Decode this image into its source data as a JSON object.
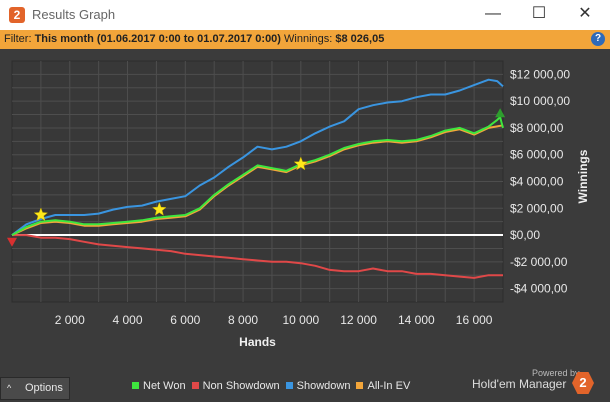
{
  "window": {
    "title": "Results Graph",
    "app_icon": "2",
    "minimize": "—",
    "maximize": "☐",
    "close": "✕"
  },
  "filter": {
    "label": "Filter:",
    "value": "This month (01.06.2017 0:00 to 01.07.2017 0:00)",
    "winnings_label": "Winnings:",
    "winnings_value": "$8 026,05",
    "help": "?"
  },
  "footer": {
    "options_label": "Options",
    "powered_by": "Powered by",
    "brand": "Hold'em Manager",
    "brand_logo": "2"
  },
  "colors": {
    "net_won": "#3ee63e",
    "non_showdown": "#e04848",
    "showdown": "#3a95e0",
    "all_in_ev": "#f2a53a",
    "plot_bg": "#383838",
    "grid": "#4e4e4e"
  },
  "chart_data": {
    "type": "line",
    "xlabel": "Hands",
    "ylabel": "Winnings",
    "xlim": [
      0,
      17000
    ],
    "ylim": [
      -5000,
      13000
    ],
    "xticks": [
      2000,
      4000,
      6000,
      8000,
      10000,
      12000,
      14000,
      16000
    ],
    "xtick_labels": [
      "2 000",
      "4 000",
      "6 000",
      "8 000",
      "10 000",
      "12 000",
      "14 000",
      "16 000"
    ],
    "yticks": [
      12000,
      10000,
      8000,
      6000,
      4000,
      2000,
      0,
      -2000,
      -4000
    ],
    "ytick_labels": [
      "$12 000,00",
      "$10 000,00",
      "$8 000,00",
      "$6 000,00",
      "$4 000,00",
      "$2 000,00",
      "$0,00",
      "-$2 000,00",
      "-$4 000,00"
    ],
    "grid": true,
    "legend_position": "bottom",
    "series": [
      {
        "name": "Net Won",
        "color": "#3ee63e",
        "x": [
          0,
          500,
          1000,
          1500,
          2000,
          2500,
          3000,
          3500,
          4000,
          4500,
          5000,
          5500,
          6000,
          6500,
          7000,
          7500,
          8000,
          8500,
          9000,
          9500,
          10000,
          10500,
          11000,
          11500,
          12000,
          12500,
          13000,
          13500,
          14000,
          14500,
          15000,
          15500,
          16000,
          16500,
          16800,
          16900,
          17000
        ],
        "y": [
          0,
          600,
          1000,
          1100,
          1000,
          800,
          800,
          900,
          1000,
          1100,
          1300,
          1400,
          1500,
          2000,
          3000,
          3800,
          4500,
          5200,
          5000,
          4800,
          5300,
          5600,
          6000,
          6500,
          6800,
          7000,
          7100,
          7000,
          7100,
          7400,
          7800,
          8000,
          7600,
          8100,
          8600,
          8800,
          8000
        ]
      },
      {
        "name": "Non Showdown",
        "color": "#e04848",
        "x": [
          0,
          500,
          1000,
          1500,
          2000,
          2500,
          3000,
          3500,
          4000,
          4500,
          5000,
          5500,
          6000,
          6500,
          7000,
          7500,
          8000,
          8500,
          9000,
          9500,
          10000,
          10500,
          11000,
          11500,
          12000,
          12500,
          13000,
          13500,
          14000,
          14500,
          15000,
          15500,
          16000,
          16500,
          17000
        ],
        "y": [
          0,
          0,
          -200,
          -200,
          -300,
          -500,
          -700,
          -800,
          -900,
          -1000,
          -1100,
          -1200,
          -1400,
          -1500,
          -1600,
          -1700,
          -1800,
          -1900,
          -2000,
          -2000,
          -2100,
          -2300,
          -2600,
          -2700,
          -2700,
          -2500,
          -2700,
          -2700,
          -2900,
          -2900,
          -3000,
          -3100,
          -3200,
          -3000,
          -3000
        ]
      },
      {
        "name": "Showdown",
        "color": "#3a95e0",
        "x": [
          0,
          500,
          1000,
          1500,
          2000,
          2500,
          3000,
          3500,
          4000,
          4500,
          5000,
          5500,
          6000,
          6500,
          7000,
          7500,
          8000,
          8500,
          9000,
          9500,
          10000,
          10500,
          11000,
          11500,
          12000,
          12500,
          13000,
          13500,
          14000,
          14500,
          15000,
          15500,
          16000,
          16500,
          16800,
          17000
        ],
        "y": [
          0,
          800,
          1200,
          1500,
          1500,
          1500,
          1600,
          1900,
          2100,
          2200,
          2500,
          2700,
          2900,
          3700,
          4300,
          5100,
          5800,
          6600,
          6400,
          6600,
          7000,
          7600,
          8100,
          8500,
          9400,
          9700,
          9900,
          10000,
          10300,
          10500,
          10500,
          10800,
          11200,
          11600,
          11500,
          11100
        ]
      },
      {
        "name": "All-In EV",
        "color": "#f2a53a",
        "x": [
          0,
          500,
          1000,
          1500,
          2000,
          2500,
          3000,
          3500,
          4000,
          4500,
          5000,
          5500,
          6000,
          6500,
          7000,
          7500,
          8000,
          8500,
          9000,
          9500,
          10000,
          10500,
          11000,
          11500,
          12000,
          12500,
          13000,
          13500,
          14000,
          14500,
          15000,
          15500,
          16000,
          16500,
          17000
        ],
        "y": [
          0,
          500,
          900,
          1000,
          900,
          700,
          700,
          800,
          900,
          1000,
          1200,
          1300,
          1400,
          1900,
          2900,
          3700,
          4400,
          5100,
          4900,
          4700,
          5200,
          5500,
          5900,
          6400,
          6700,
          6900,
          7000,
          6900,
          7000,
          7300,
          7700,
          7900,
          7500,
          8000,
          8200
        ]
      }
    ],
    "markers": [
      {
        "type": "star",
        "x": 1000,
        "y": 1500
      },
      {
        "type": "star",
        "x": 5100,
        "y": 1900
      },
      {
        "type": "star",
        "x": 10000,
        "y": 5300
      },
      {
        "type": "down-triangle",
        "x": 0,
        "y": -500
      },
      {
        "type": "up-triangle",
        "x": 16900,
        "y": 9100
      }
    ]
  }
}
